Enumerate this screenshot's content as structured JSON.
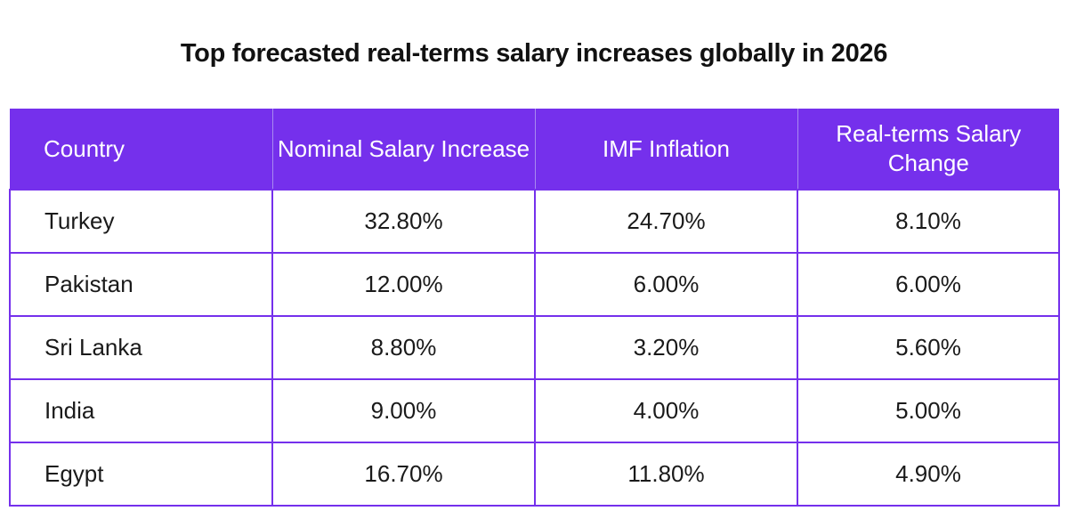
{
  "title": "Top forecasted real-terms salary increases globally in 2026",
  "table": {
    "headers": [
      "Country",
      "Nominal Salary Increase",
      "IMF Inflation",
      "Real-terms Salary Change"
    ],
    "rows": [
      [
        "Turkey",
        "32.80%",
        "24.70%",
        "8.10%"
      ],
      [
        "Pakistan",
        "12.00%",
        "6.00%",
        "6.00%"
      ],
      [
        "Sri Lanka",
        "8.80%",
        "3.20%",
        "5.60%"
      ],
      [
        "India",
        "9.00%",
        "4.00%",
        "5.00%"
      ],
      [
        "Egypt",
        "16.70%",
        "11.80%",
        "4.90%"
      ]
    ]
  },
  "colors": {
    "header_bg": "#7530ec",
    "border": "#7530ec",
    "header_text": "#ffffff"
  },
  "chart_data": {
    "type": "table",
    "title": "Top forecasted real-terms salary increases globally in 2026",
    "columns": [
      "Country",
      "Nominal Salary Increase",
      "IMF Inflation",
      "Real-terms Salary Change"
    ],
    "categories": [
      "Turkey",
      "Pakistan",
      "Sri Lanka",
      "India",
      "Egypt"
    ],
    "series": [
      {
        "name": "Nominal Salary Increase",
        "values": [
          32.8,
          12.0,
          8.8,
          9.0,
          16.7
        ]
      },
      {
        "name": "IMF Inflation",
        "values": [
          24.7,
          6.0,
          3.2,
          4.0,
          11.8
        ]
      },
      {
        "name": "Real-terms Salary Change",
        "values": [
          8.1,
          6.0,
          5.6,
          5.0,
          4.9
        ]
      }
    ],
    "unit": "%"
  }
}
